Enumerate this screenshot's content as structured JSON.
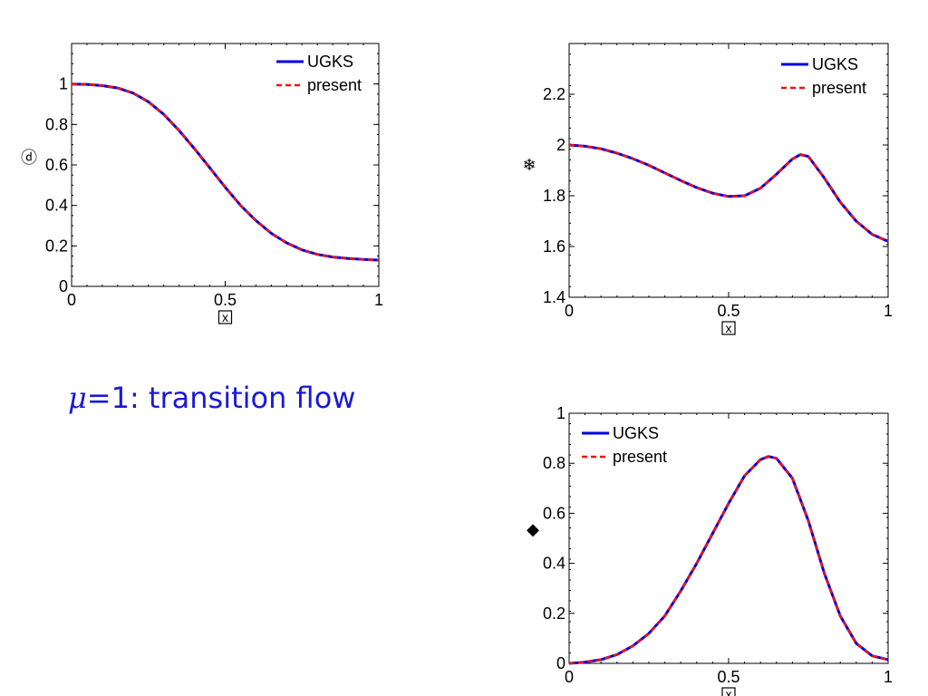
{
  "caption": {
    "symbol": "μ",
    "text": "=1: transition flow"
  },
  "colors": {
    "ugks": "#0000dd",
    "present": "#ee1111",
    "caption": "#1a1ad6"
  },
  "chart_data": [
    {
      "type": "line",
      "ylabel": "ⓓ",
      "xlabel": "x",
      "xlim": [
        0,
        1
      ],
      "ylim": [
        0,
        1.2
      ],
      "xticks": [
        "0",
        "0.5",
        "1"
      ],
      "yticks": [
        {
          "v": 0,
          "label": "0"
        },
        {
          "v": 0.2,
          "label": "0.2"
        },
        {
          "v": 0.4,
          "label": "0.4"
        },
        {
          "v": 0.6,
          "label": "0.6"
        },
        {
          "v": 0.8,
          "label": "0.8"
        },
        {
          "v": 1,
          "label": "1"
        }
      ],
      "legend_position": "top-right",
      "x": [
        0,
        0.05,
        0.1,
        0.15,
        0.2,
        0.25,
        0.3,
        0.35,
        0.4,
        0.45,
        0.5,
        0.55,
        0.6,
        0.65,
        0.7,
        0.75,
        0.8,
        0.85,
        0.9,
        0.95,
        1.0
      ],
      "series": [
        {
          "name": "UGKS",
          "values": [
            1.0,
            0.998,
            0.992,
            0.98,
            0.955,
            0.912,
            0.85,
            0.77,
            0.68,
            0.585,
            0.49,
            0.4,
            0.325,
            0.262,
            0.215,
            0.18,
            0.158,
            0.145,
            0.138,
            0.133,
            0.13
          ]
        },
        {
          "name": "present",
          "values": [
            1.0,
            0.998,
            0.992,
            0.98,
            0.955,
            0.912,
            0.85,
            0.77,
            0.68,
            0.585,
            0.49,
            0.4,
            0.325,
            0.262,
            0.215,
            0.18,
            0.158,
            0.145,
            0.138,
            0.133,
            0.13
          ]
        }
      ]
    },
    {
      "type": "line",
      "ylabel": "❄",
      "xlabel": "x",
      "xlim": [
        0,
        1
      ],
      "ylim": [
        1.4,
        2.4
      ],
      "xticks": [
        "0",
        "0.5",
        "1"
      ],
      "yticks": [
        {
          "v": 1.4,
          "label": "1.4"
        },
        {
          "v": 1.6,
          "label": "1.6"
        },
        {
          "v": 1.8,
          "label": "1.8"
        },
        {
          "v": 2.0,
          "label": "2"
        },
        {
          "v": 2.2,
          "label": "2.2"
        }
      ],
      "legend_position": "top-right",
      "x": [
        0,
        0.05,
        0.1,
        0.15,
        0.2,
        0.25,
        0.3,
        0.35,
        0.4,
        0.45,
        0.5,
        0.55,
        0.6,
        0.65,
        0.7,
        0.725,
        0.75,
        0.8,
        0.85,
        0.9,
        0.95,
        1.0
      ],
      "series": [
        {
          "name": "UGKS",
          "values": [
            2.0,
            1.995,
            1.985,
            1.968,
            1.946,
            1.92,
            1.89,
            1.86,
            1.832,
            1.81,
            1.797,
            1.8,
            1.83,
            1.885,
            1.945,
            1.962,
            1.955,
            1.87,
            1.775,
            1.7,
            1.648,
            1.62
          ]
        },
        {
          "name": "present",
          "values": [
            2.0,
            1.995,
            1.985,
            1.968,
            1.946,
            1.92,
            1.89,
            1.86,
            1.832,
            1.81,
            1.797,
            1.8,
            1.83,
            1.885,
            1.945,
            1.962,
            1.955,
            1.87,
            1.775,
            1.7,
            1.648,
            1.62
          ]
        }
      ]
    },
    {
      "type": "line",
      "ylabel": "◆",
      "xlabel": "x",
      "xlim": [
        0,
        1
      ],
      "ylim": [
        0,
        1
      ],
      "xticks": [
        "0",
        "0.5",
        "1"
      ],
      "yticks": [
        {
          "v": 0,
          "label": "0"
        },
        {
          "v": 0.2,
          "label": "0.2"
        },
        {
          "v": 0.4,
          "label": "0.4"
        },
        {
          "v": 0.6,
          "label": "0.6"
        },
        {
          "v": 0.8,
          "label": "0.8"
        },
        {
          "v": 1,
          "label": "1"
        }
      ],
      "legend_position": "top-left",
      "x": [
        0,
        0.05,
        0.1,
        0.15,
        0.2,
        0.25,
        0.3,
        0.35,
        0.4,
        0.45,
        0.5,
        0.55,
        0.6,
        0.625,
        0.65,
        0.7,
        0.75,
        0.8,
        0.85,
        0.9,
        0.95,
        1.0
      ],
      "series": [
        {
          "name": "UGKS",
          "values": [
            0.0,
            0.005,
            0.015,
            0.035,
            0.07,
            0.12,
            0.19,
            0.29,
            0.4,
            0.52,
            0.64,
            0.75,
            0.815,
            0.827,
            0.82,
            0.74,
            0.57,
            0.36,
            0.19,
            0.08,
            0.03,
            0.015
          ]
        },
        {
          "name": "present",
          "values": [
            0.0,
            0.005,
            0.015,
            0.035,
            0.07,
            0.12,
            0.19,
            0.29,
            0.4,
            0.52,
            0.64,
            0.75,
            0.815,
            0.827,
            0.82,
            0.74,
            0.57,
            0.36,
            0.19,
            0.08,
            0.03,
            0.015
          ]
        }
      ]
    }
  ]
}
